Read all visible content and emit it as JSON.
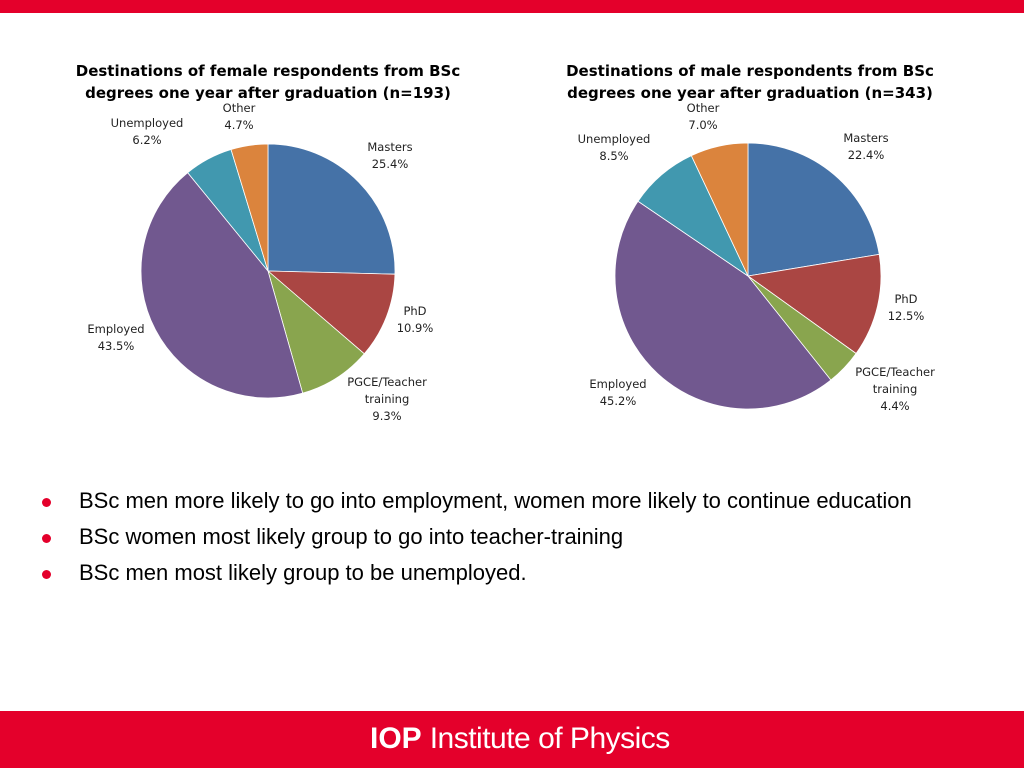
{
  "colors": {
    "brand_red": "#e4002b",
    "bullet_red": "#e4002b",
    "Masters": "#4572a7",
    "PhD": "#aa4643",
    "PGCE/Teacher training": "#89a54e",
    "Employed": "#71588f",
    "Unemployed": "#4198af",
    "Other": "#db843d"
  },
  "chart_data": [
    {
      "type": "pie",
      "title": "Destinations of female respondents from BSc degrees one year after graduation (n=193)",
      "title_lines": [
        "Destinations of female respondents from BSc",
        "degrees one year after graduation (n=193)"
      ],
      "slices": [
        {
          "label": "Masters",
          "label_lines": [
            "Masters"
          ],
          "value_text": "25.4%",
          "value": 25.4
        },
        {
          "label": "PhD",
          "label_lines": [
            "PhD"
          ],
          "value_text": "10.9%",
          "value": 10.9
        },
        {
          "label": "PGCE/Teacher training",
          "label_lines": [
            "PGCE/Teacher",
            "training"
          ],
          "value_text": "9.3%",
          "value": 9.3
        },
        {
          "label": "Employed",
          "label_lines": [
            "Employed"
          ],
          "value_text": "43.5%",
          "value": 43.5
        },
        {
          "label": "Unemployed",
          "label_lines": [
            "Unemployed"
          ],
          "value_text": "6.2%",
          "value": 6.2
        },
        {
          "label": "Other",
          "label_lines": [
            "Other"
          ],
          "value_text": "4.7%",
          "value": 4.7
        }
      ]
    },
    {
      "type": "pie",
      "title": "Destinations of male respondents from BSc degrees one year after graduation (n=343)",
      "title_lines": [
        "Destinations of male respondents from BSc",
        "degrees one year after graduation (n=343)"
      ],
      "slices": [
        {
          "label": "Masters",
          "label_lines": [
            "Masters"
          ],
          "value_text": "22.4%",
          "value": 22.4
        },
        {
          "label": "PhD",
          "label_lines": [
            "PhD"
          ],
          "value_text": "12.5%",
          "value": 12.5
        },
        {
          "label": "PGCE/Teacher training",
          "label_lines": [
            "PGCE/Teacher",
            "training"
          ],
          "value_text": "4.4%",
          "value": 4.4
        },
        {
          "label": "Employed",
          "label_lines": [
            "Employed"
          ],
          "value_text": "45.2%",
          "value": 45.2
        },
        {
          "label": "Unemployed",
          "label_lines": [
            "Unemployed"
          ],
          "value_text": "8.5%",
          "value": 8.5
        },
        {
          "label": "Other",
          "label_lines": [
            "Other"
          ],
          "value_text": "7.0%",
          "value": 7.0
        }
      ]
    }
  ],
  "bullets": [
    "BSc men more likely to go into employment, women more likely to continue education",
    "BSc women most likely group to go into teacher-training",
    "BSc men most likely group to be unemployed."
  ],
  "footer": {
    "logo_mark": "IOP",
    "logo_text": "Institute of Physics"
  }
}
